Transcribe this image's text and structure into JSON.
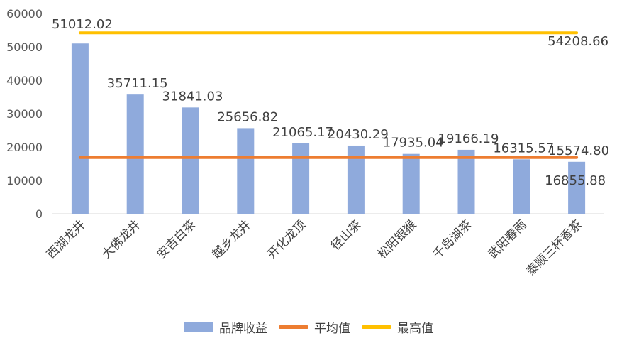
{
  "chart_data": {
    "type": "bar",
    "categories": [
      "西湖龙井",
      "大佛龙井",
      "安吉白茶",
      "越乡龙井",
      "开化龙顶",
      "径山茶",
      "松阳银猴",
      "千岛湖茶",
      "武阳春雨",
      "泰顺三杯香茶"
    ],
    "series": [
      {
        "name": "品牌收益",
        "type": "bar",
        "values": [
          51012.02,
          35711.15,
          31841.03,
          25656.82,
          21065.17,
          20430.29,
          17935.04,
          19166.19,
          16315.57,
          15574.8
        ],
        "color": "#8faadc"
      },
      {
        "name": "平均值",
        "type": "line",
        "value": 16855.88,
        "color": "#ed7d31"
      },
      {
        "name": "最高值",
        "type": "line",
        "value": 54208.66,
        "color": "#ffc000"
      }
    ],
    "data_labels": [
      "51012.02",
      "35711.15",
      "31841.03",
      "25656.82",
      "21065.17",
      "20430.29",
      "17935.04",
      "19166.19",
      "16315.57",
      "15574.80"
    ],
    "avg_label": "16855.88",
    "max_label": "54208.66",
    "yticks": [
      "0",
      "10000",
      "20000",
      "30000",
      "40000",
      "50000",
      "60000"
    ],
    "ylim": [
      0,
      60000
    ],
    "grid": false,
    "legend_position": "bottom"
  }
}
